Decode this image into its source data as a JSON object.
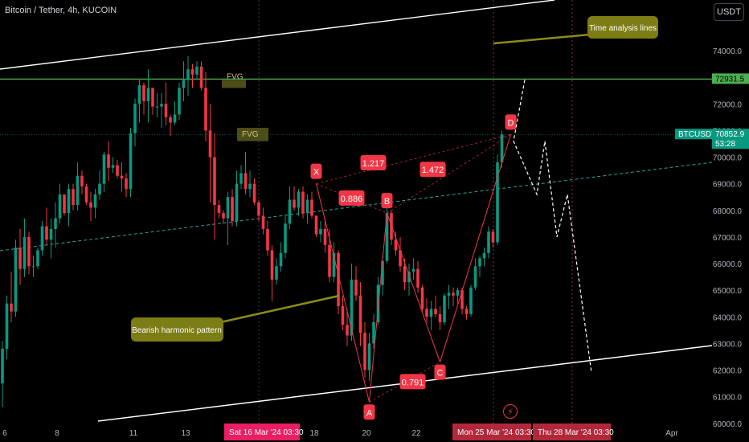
{
  "header": {
    "title": "Bitcoin / Tether, 4h, KUCOIN",
    "currency": "USDT"
  },
  "colors": {
    "up": "#089981",
    "down": "#f23645",
    "fvg": "#5b5a1a",
    "callout": "#7d7d16",
    "level": "#4caf50",
    "channel": "#ffffff",
    "midline": "#26a69a"
  },
  "icons": {
    "flash": "⚡"
  },
  "chart_data": {
    "type": "candlestick",
    "symbol": "BTCUSDT",
    "interval": "4h",
    "ylim": [
      59600,
      75600
    ],
    "y_ticks": [
      60000,
      61000,
      62000,
      63000,
      64000,
      65000,
      66000,
      67000,
      68000,
      69000,
      70000,
      71000,
      72000,
      73000,
      74000
    ],
    "x_ticks": [
      "6",
      "8",
      "11",
      "13",
      "18",
      "20",
      "22",
      "Apr"
    ],
    "x_highlight_labels": [
      "Sat 16 Mar '24   03:30",
      "Mon 25 Mar '24   03:30",
      "Thu 28 Mar '24   03:30"
    ],
    "price_labels": [
      {
        "text": "72931.5",
        "value": 72931.5,
        "kind": "level"
      },
      {
        "text": "BTCUSDT",
        "value": 70852.9,
        "kind": "symbol"
      },
      {
        "text": "70852.9",
        "value": 70852.9,
        "kind": "last"
      },
      {
        "text": "53:28",
        "value": 70852.9,
        "kind": "countdown"
      }
    ],
    "horizontal_level": 72931.5,
    "candles": [
      [
        61500,
        63100,
        60600,
        62800
      ],
      [
        62800,
        64800,
        62400,
        64500
      ],
      [
        64500,
        65700,
        63800,
        64200
      ],
      [
        64200,
        66900,
        64000,
        66600
      ],
      [
        66600,
        67300,
        65200,
        65800
      ],
      [
        65800,
        67700,
        65500,
        67000
      ],
      [
        67000,
        67200,
        65600,
        65900
      ],
      [
        65900,
        66300,
        65500,
        65900
      ],
      [
        65900,
        66600,
        65800,
        66500
      ],
      [
        66500,
        67600,
        66300,
        67400
      ],
      [
        67400,
        68100,
        66700,
        66900
      ],
      [
        66900,
        67700,
        66200,
        67300
      ],
      [
        67300,
        68300,
        66600,
        67700
      ],
      [
        67700,
        69000,
        67500,
        68600
      ],
      [
        68600,
        68600,
        67800,
        67900
      ],
      [
        67900,
        69000,
        67400,
        68800
      ],
      [
        68800,
        69000,
        68000,
        68200
      ],
      [
        68200,
        69800,
        68000,
        69300
      ],
      [
        69300,
        69500,
        68600,
        68900
      ],
      [
        68900,
        69000,
        68200,
        68300
      ],
      [
        68300,
        68700,
        67600,
        68100
      ],
      [
        68100,
        68800,
        67700,
        68600
      ],
      [
        68600,
        69500,
        68400,
        69000
      ],
      [
        69000,
        70200,
        68700,
        70100
      ],
      [
        70100,
        70600,
        69100,
        69600
      ],
      [
        69600,
        70000,
        69400,
        69700
      ],
      [
        69700,
        69900,
        69200,
        69300
      ],
      [
        69300,
        69800,
        68700,
        69200
      ],
      [
        69200,
        69400,
        68500,
        68800
      ],
      [
        68800,
        71100,
        68500,
        70900
      ],
      [
        70900,
        72200,
        70400,
        72000
      ],
      [
        72000,
        72900,
        71300,
        72700
      ],
      [
        72700,
        72800,
        71600,
        72100
      ],
      [
        72100,
        73300,
        71300,
        72600
      ],
      [
        72600,
        72600,
        71600,
        71900
      ],
      [
        71900,
        72400,
        71500,
        71900
      ],
      [
        71900,
        72400,
        71100,
        72000
      ],
      [
        72000,
        72800,
        71200,
        71500
      ],
      [
        71500,
        71600,
        70800,
        71300
      ],
      [
        71300,
        72100,
        71200,
        71600
      ],
      [
        71600,
        72800,
        71400,
        72600
      ],
      [
        72600,
        73600,
        72100,
        72900
      ],
      [
        72900,
        73800,
        72300,
        73300
      ],
      [
        73300,
        73500,
        72600,
        73100
      ],
      [
        73100,
        73600,
        72900,
        73400
      ],
      [
        73400,
        73600,
        72500,
        72600
      ],
      [
        72600,
        73200,
        70600,
        71000
      ],
      [
        71000,
        72000,
        68300,
        70000
      ],
      [
        70000,
        70900,
        66900,
        68200
      ],
      [
        68200,
        68400,
        67700,
        67900
      ],
      [
        67900,
        68000,
        67500,
        67700
      ],
      [
        67700,
        68700,
        66700,
        68500
      ],
      [
        68500,
        68800,
        67400,
        67600
      ],
      [
        67600,
        69500,
        67400,
        69000
      ],
      [
        69000,
        69700,
        68800,
        69400
      ],
      [
        69400,
        70200,
        68600,
        68800
      ],
      [
        68800,
        69500,
        68500,
        69000
      ],
      [
        69000,
        69200,
        68200,
        68300
      ],
      [
        68300,
        68400,
        67600,
        67800
      ],
      [
        67800,
        68100,
        67100,
        67300
      ],
      [
        67300,
        67600,
        66300,
        66500
      ],
      [
        66500,
        66700,
        64600,
        65400
      ],
      [
        65400,
        66200,
        65200,
        65900
      ],
      [
        65900,
        66800,
        65700,
        66400
      ],
      [
        66400,
        67800,
        66200,
        67500
      ],
      [
        67500,
        68900,
        67300,
        68400
      ],
      [
        68400,
        68900,
        68000,
        68100
      ],
      [
        68100,
        68800,
        67800,
        68700
      ],
      [
        68700,
        68900,
        67700,
        67900
      ],
      [
        67900,
        68600,
        67500,
        68400
      ],
      [
        68400,
        68700,
        67700,
        67800
      ],
      [
        67800,
        67800,
        67000,
        67100
      ],
      [
        67100,
        67600,
        66800,
        67300
      ],
      [
        67300,
        67700,
        66400,
        66700
      ],
      [
        66700,
        67300,
        65300,
        65500
      ],
      [
        65500,
        66800,
        65300,
        66400
      ],
      [
        66400,
        66500,
        64100,
        64400
      ],
      [
        64400,
        64800,
        63500,
        63700
      ],
      [
        63700,
        64300,
        62900,
        63300
      ],
      [
        63300,
        66000,
        63100,
        65400
      ],
      [
        65400,
        65900,
        64600,
        64800
      ],
      [
        64800,
        65300,
        62900,
        63400
      ],
      [
        63400,
        63800,
        61700,
        62000
      ],
      [
        62000,
        63400,
        61600,
        63000
      ],
      [
        63000,
        64100,
        62800,
        63800
      ],
      [
        63800,
        65500,
        63700,
        65200
      ],
      [
        65200,
        66300,
        64800,
        66100
      ],
      [
        66100,
        68300,
        66000,
        67900
      ],
      [
        67900,
        68000,
        66700,
        66900
      ],
      [
        66900,
        67200,
        66300,
        66500
      ],
      [
        66500,
        67000,
        65700,
        65900
      ],
      [
        65900,
        66200,
        65000,
        65300
      ],
      [
        65300,
        66000,
        64800,
        65700
      ],
      [
        65700,
        66200,
        65400,
        65800
      ],
      [
        65800,
        66100,
        64900,
        65100
      ],
      [
        65100,
        65200,
        64200,
        64300
      ],
      [
        64300,
        64700,
        63800,
        64000
      ],
      [
        64000,
        64600,
        63500,
        64300
      ],
      [
        64300,
        64800,
        64000,
        64100
      ],
      [
        64100,
        64400,
        63500,
        63800
      ],
      [
        63800,
        64900,
        63700,
        64800
      ],
      [
        64800,
        65200,
        64300,
        64900
      ],
      [
        64900,
        65100,
        64400,
        64800
      ],
      [
        64800,
        65100,
        64500,
        65000
      ],
      [
        65000,
        65100,
        64100,
        64300
      ],
      [
        64300,
        64400,
        63900,
        64100
      ],
      [
        64100,
        65200,
        64000,
        65100
      ],
      [
        65100,
        66200,
        65000,
        65900
      ],
      [
        65900,
        66300,
        65500,
        66200
      ],
      [
        66200,
        66600,
        65900,
        66400
      ],
      [
        66400,
        67400,
        66200,
        67200
      ],
      [
        67200,
        67300,
        66600,
        66800
      ],
      [
        66800,
        70100,
        66700,
        69800
      ],
      [
        69800,
        71000,
        69600,
        70853
      ]
    ],
    "fvg_zones": [
      {
        "label": "FVG",
        "top": 72900,
        "bottom": 72600
      },
      {
        "label": "FVG",
        "top": 71100,
        "bottom": 70600
      }
    ],
    "harmonic_pattern": {
      "points": [
        {
          "label": "X",
          "value": 69000
        },
        {
          "label": "A",
          "value": 60800
        },
        {
          "label": "B",
          "value": 67900
        },
        {
          "label": "C",
          "value": 62300
        },
        {
          "label": "D",
          "value": 70850
        }
      ],
      "ratios": [
        "0.886",
        "1.217",
        "1.472",
        "0.791"
      ]
    },
    "annotations": [
      "FVG",
      "FVG",
      "Time analysis lines",
      "Bearish harmonic pattern"
    ],
    "projection_path": [
      72900,
      70600,
      68600,
      70600,
      67000,
      68600,
      61900
    ]
  }
}
